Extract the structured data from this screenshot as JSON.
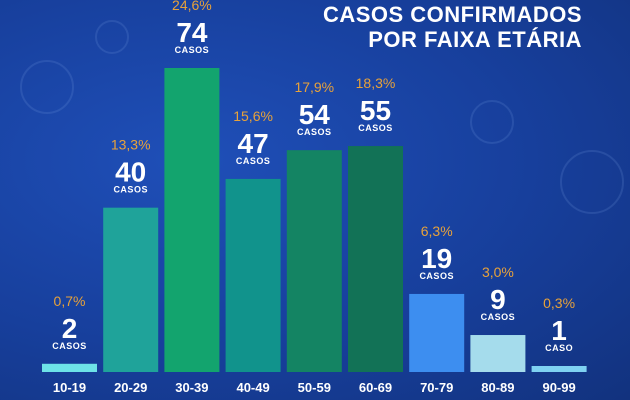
{
  "title_lines": [
    "CASOS CONFIRMADOS",
    "POR FAIXA ETÁRIA"
  ],
  "chart_data": {
    "type": "bar",
    "title": "CASOS CONFIRMADOS POR FAIXA ETÁRIA",
    "categories": [
      "10-19",
      "20-29",
      "30-39",
      "40-49",
      "50-59",
      "60-69",
      "70-79",
      "80-89",
      "90-99"
    ],
    "values": [
      2,
      40,
      74,
      47,
      54,
      55,
      19,
      9,
      1
    ],
    "percent_labels": [
      "0,7%",
      "13,3%",
      "24,6%",
      "15,6%",
      "17,9%",
      "18,3%",
      "6,3%",
      "3,0%",
      "0,3%"
    ],
    "unit_labels": [
      "CASOS",
      "CASOS",
      "CASOS",
      "CASOS",
      "CASOS",
      "CASOS",
      "CASOS",
      "CASOS",
      "CASO"
    ],
    "bar_colors": [
      "#6de3e8",
      "#1fa39a",
      "#13a46e",
      "#11938c",
      "#148463",
      "#127256",
      "#3d8ef0",
      "#a5dcec",
      "#7fd2f2"
    ],
    "ylim": [
      0,
      74
    ],
    "grid": false,
    "legend": "none"
  }
}
